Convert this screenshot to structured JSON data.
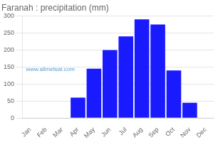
{
  "chart_data": {
    "type": "bar",
    "title": "Faranah : precipitation (mm)",
    "categories": [
      "Jan",
      "Feb",
      "Mar",
      "Apr",
      "May",
      "Jun",
      "Jul",
      "Aug",
      "Sep",
      "Oct",
      "Nov",
      "Dec"
    ],
    "values": [
      0,
      0,
      0,
      60,
      145,
      200,
      240,
      290,
      275,
      140,
      45,
      0
    ],
    "color": "#1a1aff",
    "ylim": [
      0,
      300
    ],
    "yticks": [
      0,
      50,
      100,
      150,
      200,
      250,
      300
    ],
    "grid": true,
    "annotations": [
      "www.allmetsat.com"
    ]
  }
}
